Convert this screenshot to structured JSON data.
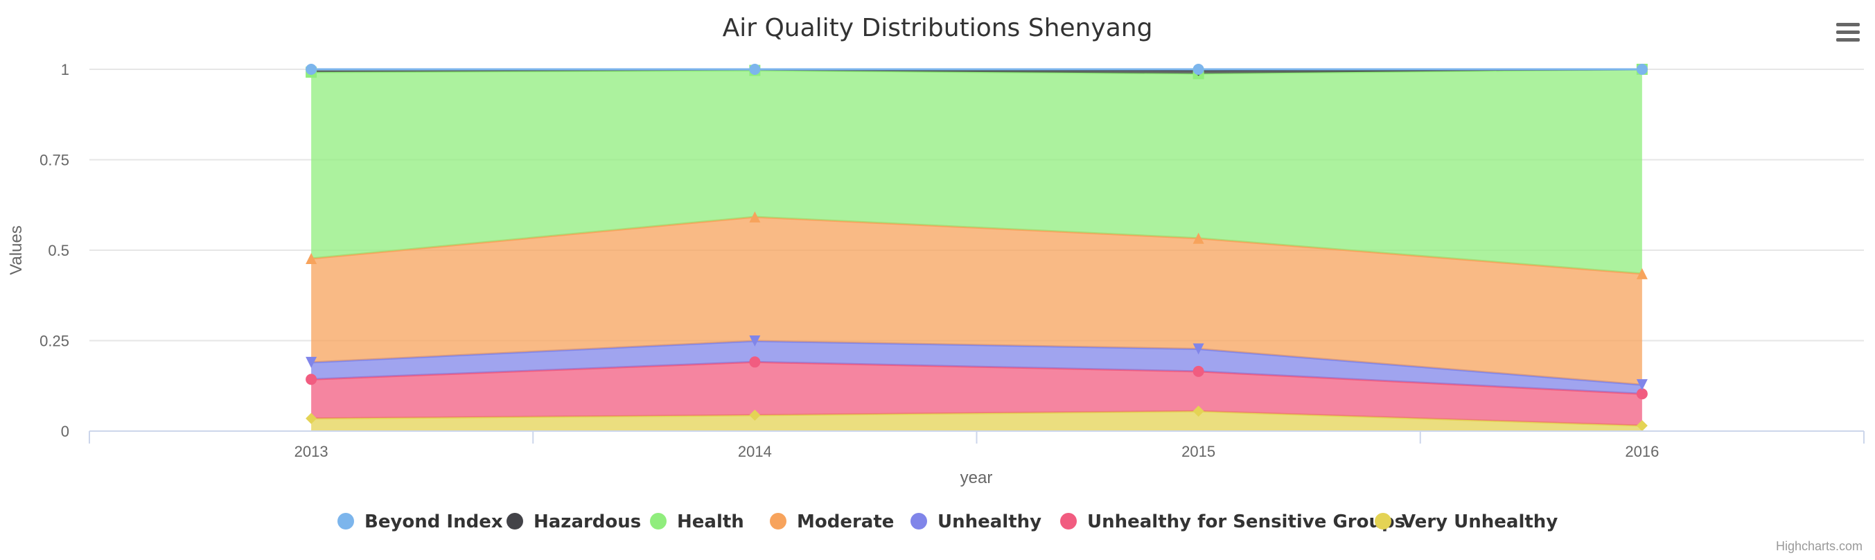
{
  "chart_data": {
    "type": "area",
    "stacking": "percent",
    "title": "Air Quality Distributions Shenyang",
    "xlabel": "year",
    "ylabel": "Values",
    "categories": [
      "2013",
      "2014",
      "2015",
      "2016"
    ],
    "y_ticks": [
      "0",
      "0.25",
      "0.5",
      "0.75",
      "1"
    ],
    "ylim": [
      0,
      1
    ],
    "legend_position": "bottom",
    "series": [
      {
        "name": "Beyond Index",
        "color": "#7cb5ec",
        "marker": "circle",
        "values": [
          0.0,
          0.0,
          0.003,
          0.0
        ]
      },
      {
        "name": "Hazardous",
        "color": "#434348",
        "marker": "diamond",
        "values": [
          0.008,
          0.003,
          0.009,
          0.0
        ]
      },
      {
        "name": "Health",
        "color": "#90ed7d",
        "marker": "square",
        "values": [
          0.515,
          0.405,
          0.455,
          0.565
        ]
      },
      {
        "name": "Moderate",
        "color": "#f7a35c",
        "marker": "triangle",
        "values": [
          0.287,
          0.343,
          0.306,
          0.307
        ]
      },
      {
        "name": "Unhealthy",
        "color": "#8085e9",
        "marker": "triangle-down",
        "values": [
          0.047,
          0.058,
          0.062,
          0.025
        ]
      },
      {
        "name": "Unhealthy for Sensitive Groups",
        "color": "#f15c80",
        "marker": "circle",
        "values": [
          0.108,
          0.147,
          0.11,
          0.088
        ]
      },
      {
        "name": "Very Unhealthy",
        "color": "#e4d354",
        "marker": "diamond",
        "values": [
          0.035,
          0.044,
          0.055,
          0.015
        ]
      }
    ]
  },
  "menu_icon": "hamburger-menu-icon",
  "credits": "Highcharts.com"
}
